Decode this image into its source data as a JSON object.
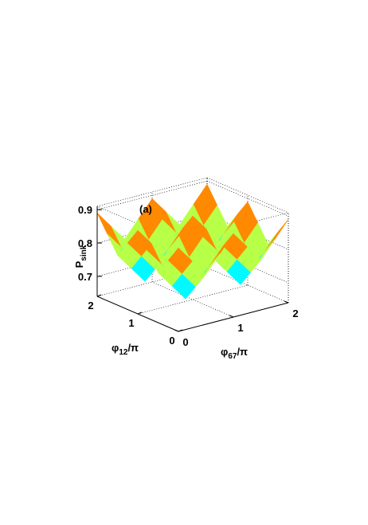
{
  "chart_data": {
    "type": "surface",
    "annotation": "(a)",
    "xlabel": {
      "base": "φ",
      "sub": "67",
      "tail": "/π"
    },
    "ylabel": {
      "base": "φ",
      "sub": "12",
      "tail": "/π"
    },
    "zlabel": {
      "base": "P",
      "sub": "sink"
    },
    "x": [
      0,
      0.25,
      0.5,
      0.75,
      1,
      1.25,
      1.5,
      1.75,
      2
    ],
    "y": [
      0,
      0.25,
      0.5,
      0.75,
      1,
      1.25,
      1.5,
      1.75,
      2
    ],
    "z": [
      [
        0.89,
        0.84,
        0.79,
        0.84,
        0.89,
        0.84,
        0.79,
        0.84,
        0.89
      ],
      [
        0.84,
        0.79,
        0.74,
        0.79,
        0.84,
        0.79,
        0.74,
        0.79,
        0.84
      ],
      [
        0.79,
        0.74,
        0.69,
        0.74,
        0.79,
        0.74,
        0.69,
        0.74,
        0.79
      ],
      [
        0.84,
        0.79,
        0.74,
        0.79,
        0.84,
        0.79,
        0.74,
        0.79,
        0.84
      ],
      [
        0.89,
        0.84,
        0.79,
        0.84,
        0.89,
        0.84,
        0.79,
        0.84,
        0.89
      ],
      [
        0.84,
        0.79,
        0.74,
        0.79,
        0.84,
        0.79,
        0.74,
        0.79,
        0.84
      ],
      [
        0.79,
        0.74,
        0.69,
        0.74,
        0.79,
        0.74,
        0.69,
        0.74,
        0.79
      ],
      [
        0.84,
        0.79,
        0.74,
        0.79,
        0.84,
        0.79,
        0.74,
        0.79,
        0.84
      ],
      [
        0.89,
        0.84,
        0.79,
        0.84,
        0.89,
        0.84,
        0.79,
        0.84,
        0.89
      ]
    ],
    "xlim": [
      0,
      2
    ],
    "xticks": [
      0,
      1,
      2
    ],
    "ylim": [
      0,
      2
    ],
    "yticks": [
      0,
      1,
      2
    ],
    "zlim": [
      0.64,
      0.91
    ],
    "zticks": [
      0.7,
      0.8,
      0.9
    ],
    "colormap": "jet",
    "grid": true
  }
}
